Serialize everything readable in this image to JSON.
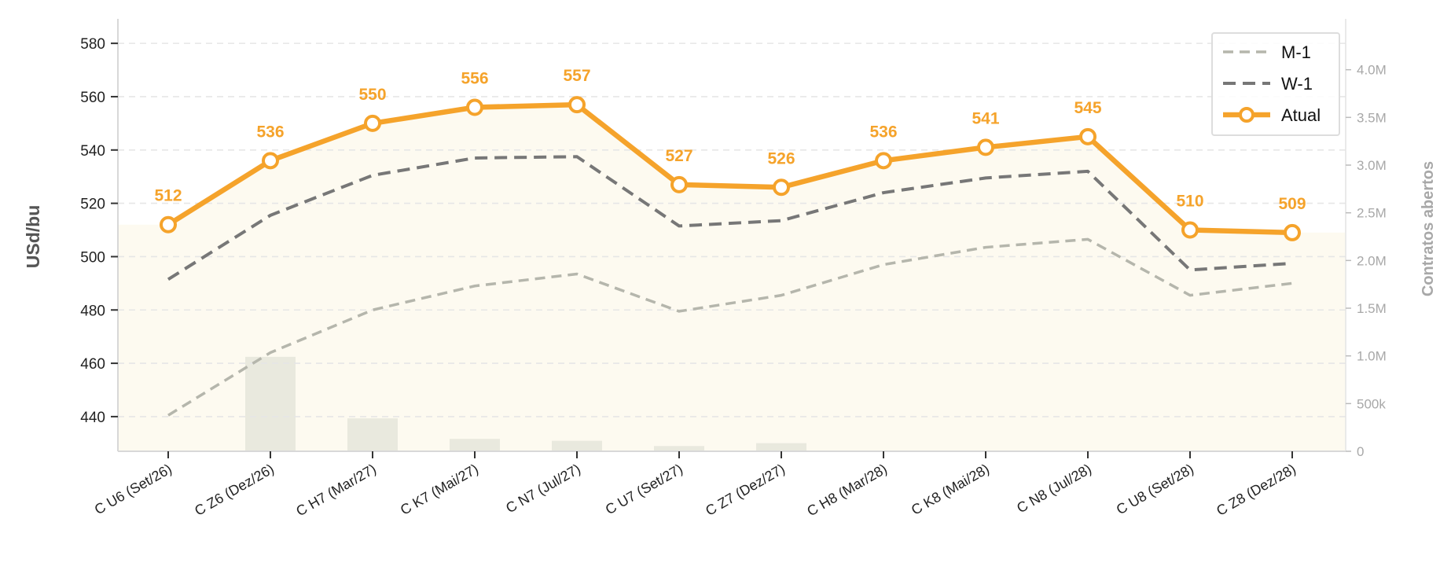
{
  "chart_data": {
    "type": "line",
    "categories": [
      "C U6 (Set/26)",
      "C Z6 (Dez/26)",
      "C H7 (Mar/27)",
      "C K7 (Mai/27)",
      "C N7 (Jul/27)",
      "C U7 (Set/27)",
      "C Z7 (Dez/27)",
      "C H8 (Mar/28)",
      "C K8 (Mai/28)",
      "C N8 (Jul/28)",
      "C U8 (Set/28)",
      "C Z8 (Dez/28)"
    ],
    "ylabel": "USd/bu",
    "y2label": "Contratos abertos",
    "ylim": [
      427,
      588
    ],
    "yticks": [
      440,
      460,
      480,
      500,
      520,
      540,
      560,
      580
    ],
    "y2lim": [
      0,
      4500000
    ],
    "y2ticks": [
      0,
      500000,
      1000000,
      1500000,
      2000000,
      2500000,
      3000000,
      3500000,
      4000000
    ],
    "y2ticklabels": [
      "0",
      "500k",
      "1.0M",
      "1.5M",
      "2.0M",
      "2.5M",
      "3.0M",
      "3.5M",
      "4.0M"
    ],
    "grid": "horizontal dashed",
    "legend_position": "top-right",
    "series": [
      {
        "name": "M-1",
        "style": "dashed",
        "color": "#b5b6ac",
        "values": [
          440.5,
          464,
          480,
          489,
          493.5,
          479.5,
          485.5,
          497,
          503.5,
          506.5,
          485.5,
          490
        ]
      },
      {
        "name": "W-1",
        "style": "dashed",
        "color": "#777777",
        "values": [
          491.5,
          515.5,
          530.5,
          537,
          537.5,
          511.5,
          513.5,
          524,
          529.5,
          532,
          495,
          497.5
        ]
      },
      {
        "name": "Atual",
        "style": "solid-markers",
        "color": "#f5a32b",
        "values": [
          512,
          536,
          550,
          556,
          557,
          527,
          526,
          536,
          541,
          545,
          510,
          509
        ],
        "labels": [
          "512",
          "536",
          "550",
          "556",
          "557",
          "527",
          "526",
          "536",
          "541",
          "545",
          "510",
          "509"
        ]
      }
    ],
    "open_interest": [
      0,
      990000,
      345000,
      130000,
      110000,
      55000,
      85000,
      0,
      0,
      0,
      0,
      0
    ],
    "colors": {
      "accent": "#f5a32b",
      "area_fill": "#fdfaf0",
      "bars": "#e9e9de",
      "axis_text": "#222222",
      "right_axis_text": "#a8a8a8",
      "grid": "#e6e6e6"
    }
  }
}
